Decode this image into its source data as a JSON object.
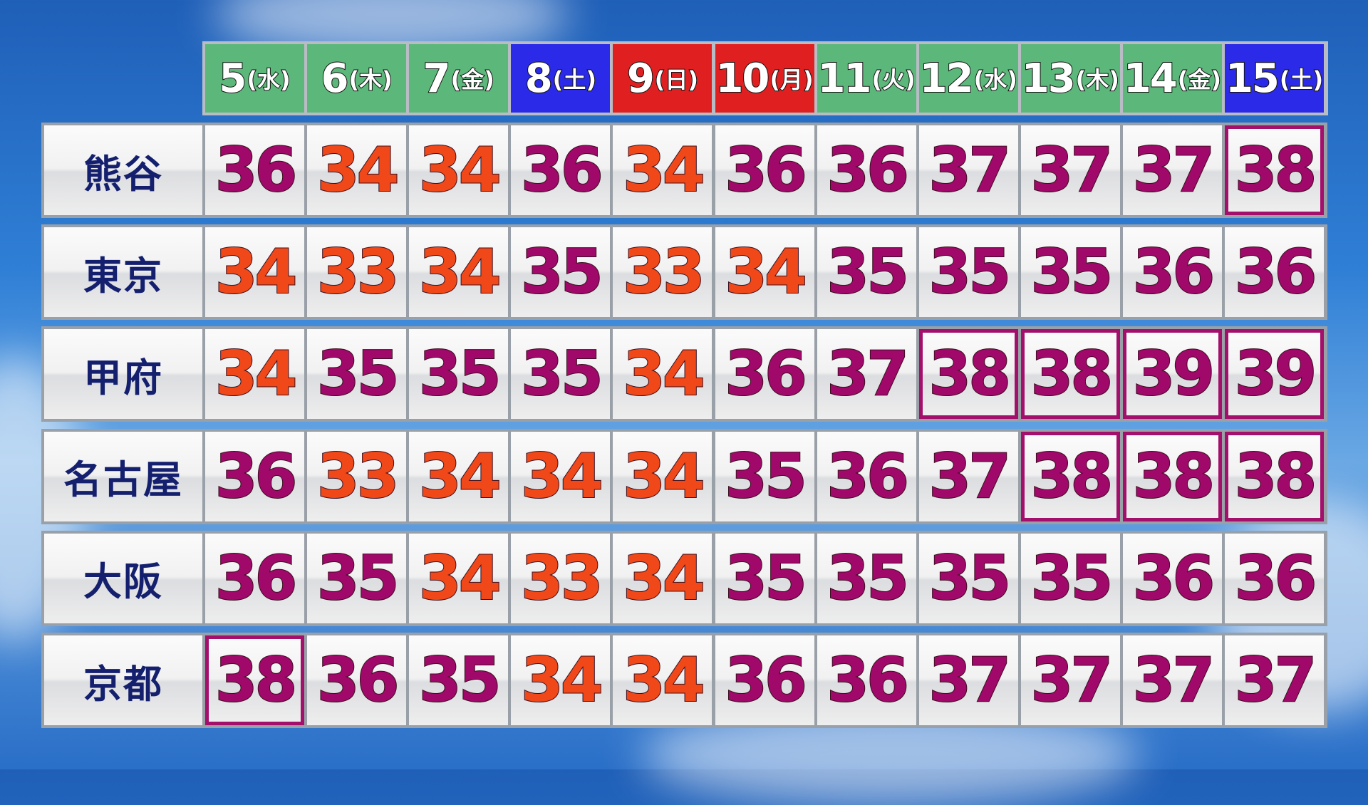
{
  "colors": {
    "weekday": "#5cb87a",
    "saturday": "#2a2ae8",
    "sunday_holiday": "#e02020",
    "hot": "#a0086a",
    "warm": "#f04818",
    "highlight_border": "#a3106c"
  },
  "days": [
    {
      "date": "5",
      "weekday": "(水)",
      "type": "weekday"
    },
    {
      "date": "6",
      "weekday": "(木)",
      "type": "weekday"
    },
    {
      "date": "7",
      "weekday": "(金)",
      "type": "weekday"
    },
    {
      "date": "8",
      "weekday": "(土)",
      "type": "saturday"
    },
    {
      "date": "9",
      "weekday": "(日)",
      "type": "sunday_holiday"
    },
    {
      "date": "10",
      "weekday": "(月)",
      "type": "sunday_holiday"
    },
    {
      "date": "11",
      "weekday": "(火)",
      "type": "weekday"
    },
    {
      "date": "12",
      "weekday": "(水)",
      "type": "weekday"
    },
    {
      "date": "13",
      "weekday": "(木)",
      "type": "weekday"
    },
    {
      "date": "14",
      "weekday": "(金)",
      "type": "weekday"
    },
    {
      "date": "15",
      "weekday": "(土)",
      "type": "saturday"
    }
  ],
  "cities": [
    {
      "name": "熊谷",
      "temps": [
        "36",
        "34",
        "34",
        "36",
        "34",
        "36",
        "36",
        "37",
        "37",
        "37",
        "38"
      ]
    },
    {
      "name": "東京",
      "temps": [
        "34",
        "33",
        "34",
        "35",
        "33",
        "34",
        "35",
        "35",
        "35",
        "36",
        "36"
      ]
    },
    {
      "name": "甲府",
      "temps": [
        "34",
        "35",
        "35",
        "35",
        "34",
        "36",
        "37",
        "38",
        "38",
        "39",
        "39"
      ]
    },
    {
      "name": "名古屋",
      "temps": [
        "36",
        "33",
        "34",
        "34",
        "34",
        "35",
        "36",
        "37",
        "38",
        "38",
        "38"
      ]
    },
    {
      "name": "大阪",
      "temps": [
        "36",
        "35",
        "34",
        "33",
        "34",
        "35",
        "35",
        "35",
        "35",
        "36",
        "36"
      ]
    },
    {
      "name": "京都",
      "temps": [
        "38",
        "36",
        "35",
        "34",
        "34",
        "36",
        "36",
        "37",
        "37",
        "37",
        "37"
      ]
    }
  ]
}
